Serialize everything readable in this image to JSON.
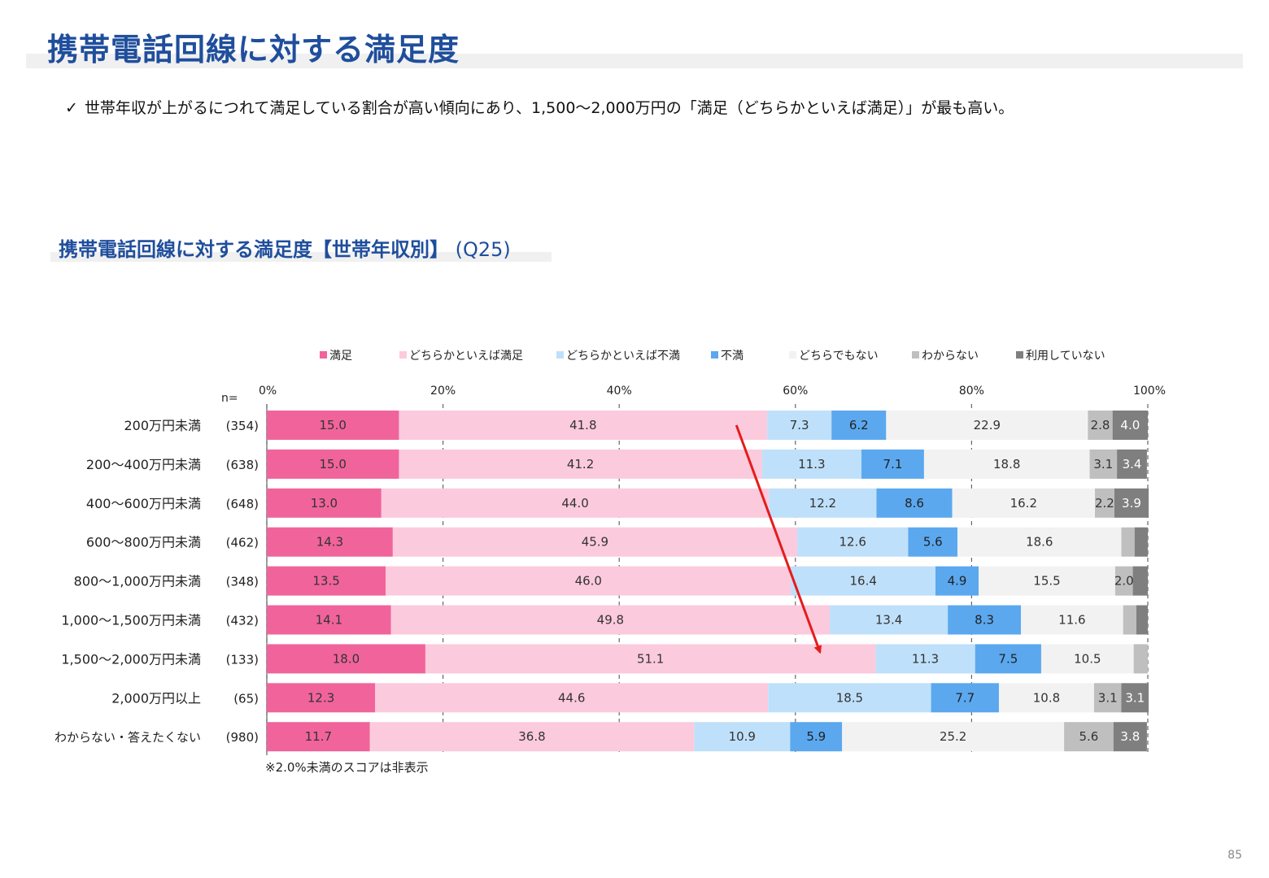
{
  "page": {
    "title": "携帯電話回線に対する満足度",
    "bullet_mark": "✓",
    "bullet_text": "世帯年収が上がるにつれて満足している割合が高い傾向にあり、1,500～2,000万円の「満足（どちらかといえば満足）」が最も高い。",
    "chart_subtitle_main": "携帯電話回線に対する満足度【世帯年収別】",
    "chart_subtitle_q": "(Q25)",
    "page_number": "85"
  },
  "chart_data": {
    "type": "bar",
    "orientation": "horizontal",
    "stacked": "100%",
    "n_label": "n=",
    "x_ticks": [
      "0%",
      "20%",
      "40%",
      "60%",
      "80%",
      "100%"
    ],
    "xlim": [
      0,
      100
    ],
    "legend_position": "top",
    "footnote": "※2.0%未満のスコアは非表示",
    "categories": [
      "200万円未満",
      "200～400万円未満",
      "400～600万円未満",
      "600～800万円未満",
      "800～1,000万円未満",
      "1,000～1,500万円未満",
      "1,500～2,000万円未満",
      "2,000万円以上",
      "わからない・答えたくない"
    ],
    "n_values": [
      "(354)",
      "(638)",
      "(648)",
      "(462)",
      "(348)",
      "(432)",
      "(133)",
      "(65)",
      "(980)"
    ],
    "series": [
      {
        "name": "満足",
        "color": "#f0649b",
        "values": [
          15.0,
          15.0,
          13.0,
          14.3,
          13.5,
          14.1,
          18.0,
          12.3,
          11.7
        ]
      },
      {
        "name": "どちらかといえば満足",
        "color": "#fccadd",
        "values": [
          41.8,
          41.2,
          44.0,
          45.9,
          46.0,
          49.8,
          51.1,
          44.6,
          36.8
        ]
      },
      {
        "name": "どちらかといえば不満",
        "color": "#bfe0fa",
        "values": [
          7.3,
          11.3,
          12.2,
          12.6,
          16.4,
          13.4,
          11.3,
          18.5,
          10.9
        ]
      },
      {
        "name": "不満",
        "color": "#5ba8ef",
        "values": [
          6.2,
          7.1,
          8.6,
          5.6,
          4.9,
          8.3,
          7.5,
          7.7,
          5.9
        ]
      },
      {
        "name": "どちらでもない",
        "color": "#f2f2f2",
        "values": [
          22.9,
          18.8,
          16.2,
          18.6,
          15.5,
          11.6,
          10.5,
          10.8,
          25.2
        ]
      },
      {
        "name": "わからない",
        "color": "#bfbfbf",
        "values": [
          2.8,
          3.1,
          2.2,
          1.5,
          2.0,
          1.5,
          1.6,
          3.1,
          5.6
        ]
      },
      {
        "name": "利用していない",
        "color": "#7f7f7f",
        "values": [
          4.0,
          3.4,
          3.9,
          1.5,
          1.7,
          1.3,
          0.0,
          3.1,
          3.8
        ]
      }
    ],
    "label_threshold": 2.0,
    "annotation": {
      "type": "arrow",
      "color": "#e51c1c",
      "from_row": 0,
      "from_x": 53.3,
      "to_row": 6,
      "to_x": 62.8
    }
  }
}
